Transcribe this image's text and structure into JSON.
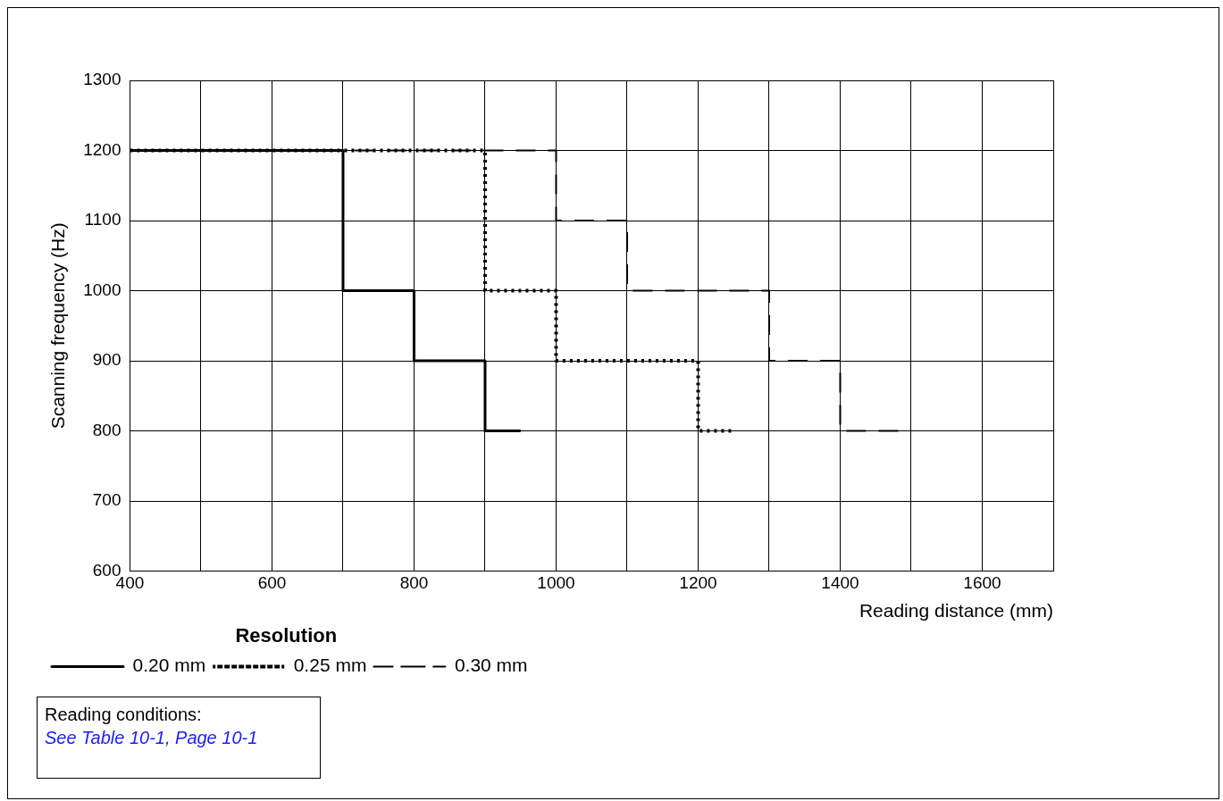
{
  "chart_data": {
    "type": "step",
    "xlabel": "Reading distance (mm)",
    "ylabel": "Scanning frequency (Hz)",
    "legend_title": "Resolution",
    "legend": "bottom left",
    "grid": true,
    "marker": "none",
    "xlim": [
      400,
      1700
    ],
    "xticks": [
      400,
      {
        "value": 500,
        "label": null
      },
      600,
      {
        "value": 700,
        "label": null
      },
      800,
      {
        "value": 900,
        "label": null
      },
      1000,
      {
        "value": 1100,
        "label": null
      },
      1200,
      {
        "value": 1300,
        "label": null
      },
      1400,
      {
        "value": 1500,
        "label": null
      },
      1600,
      {
        "value": 1700,
        "label": null
      }
    ],
    "ylim": [
      600,
      1300
    ],
    "yticks": [
      600,
      700,
      800,
      900,
      1000,
      1100,
      1200,
      1300
    ],
    "series": [
      {
        "name": "0.20 mm",
        "color": "#000000",
        "line_style": "solid",
        "x": [
          400,
          700,
          800,
          900,
          950
        ],
        "values": [
          1200,
          1000,
          900,
          800,
          800
        ]
      },
      {
        "name": "0.25 mm",
        "color": "#000000",
        "line_style": "dotted",
        "x": [
          400,
          900,
          1000,
          1200,
          1250
        ],
        "values": [
          1200,
          1000,
          900,
          800,
          800
        ]
      },
      {
        "name": "0.30 mm",
        "color": "#000000",
        "line_style": "dashed",
        "x": [
          400,
          1000,
          1100,
          1300,
          1400,
          1500
        ],
        "values": [
          1200,
          1100,
          1000,
          900,
          800,
          800
        ]
      }
    ],
    "annotations": [
      "Reading conditions:",
      "See Table 10-1, Page 10-1"
    ]
  }
}
